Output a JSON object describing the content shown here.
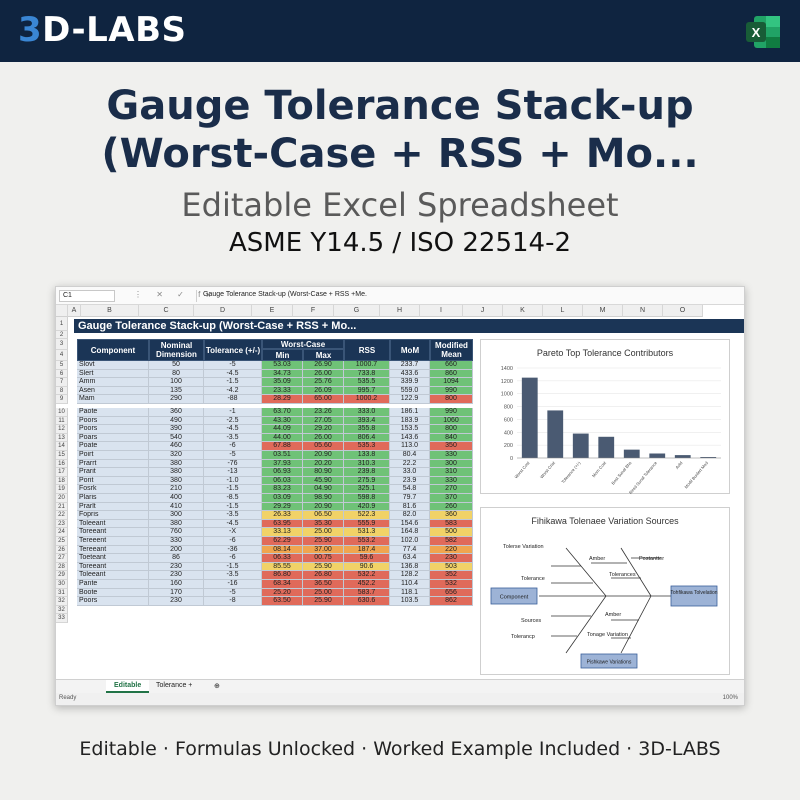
{
  "brand": {
    "prefix": "3",
    "rest": "D-LABS"
  },
  "title_line1": "Gauge Tolerance Stack-up",
  "title_line2": "(Worst-Case + RSS + Mo...",
  "subtitle": "Editable Excel Spreadsheet",
  "standard": "ASME Y14.5 / ISO 22514-2",
  "footer": "Editable · Formulas Unlocked · Worked Example Included · 3D-LABS",
  "excel": {
    "name_box": "C1",
    "formula_icons": "⋮ ✕ ✓ fx",
    "formula": "Gauge Tolerance Stack-up (Worst-Case + RSS +Me.",
    "columns": [
      "A",
      "B",
      "C",
      "D",
      "E",
      "F",
      "G",
      "H",
      "I",
      "J",
      "K",
      "L",
      "M",
      "N",
      "O"
    ],
    "sheet_title": "Gauge Tolerance Stack-up (Worst-Case + RSS + Mo...",
    "headers": {
      "component": "Component",
      "nominal": "Nominal Dimension",
      "tolerance": "Tolerance (+/-)",
      "worst_case": "Worst-Case",
      "min": "Min",
      "max": "Max",
      "rss": "RSS",
      "mom": "MoM",
      "modified": "Modified Mean"
    },
    "rows_a": [
      {
        "n": "5",
        "c": "Slovt",
        "nom": "50",
        "tol": "-5",
        "min": "53.03",
        "max": "26.90",
        "rss": "1000.7",
        "mom": "233.7",
        "mm": "660",
        "k": "g"
      },
      {
        "n": "6",
        "c": "Slert",
        "nom": "80",
        "tol": "-4.5",
        "min": "34.73",
        "max": "26.00",
        "rss": "733.8",
        "mom": "433.6",
        "mm": "860",
        "k": "g"
      },
      {
        "n": "7",
        "c": "Amm",
        "nom": "100",
        "tol": "-1.5",
        "min": "35.09",
        "max": "25.76",
        "rss": "535.5",
        "mom": "339.9",
        "mm": "1094",
        "k": "g"
      },
      {
        "n": "8",
        "c": "Asen",
        "nom": "135",
        "tol": "-4.2",
        "min": "23.33",
        "max": "26.09",
        "rss": "995.7",
        "mom": "559.0",
        "mm": "990",
        "k": "g"
      },
      {
        "n": "9",
        "c": "Mam",
        "nom": "290",
        "tol": "-88",
        "min": "28.29",
        "max": "65.00",
        "rss": "1000.2",
        "mom": "122.9",
        "mm": "800",
        "k": "r"
      }
    ],
    "rows_b": [
      {
        "n": "10",
        "c": "Paote",
        "nom": "360",
        "tol": "-1",
        "min": "63.70",
        "max": "23.26",
        "rss": "333.0",
        "mom": "186.1",
        "mm": "990",
        "k": "g"
      },
      {
        "n": "11",
        "c": "Poors",
        "nom": "490",
        "tol": "-2.5",
        "min": "43.30",
        "max": "27.05",
        "rss": "393.4",
        "mom": "183.9",
        "mm": "1060",
        "k": "g"
      },
      {
        "n": "12",
        "c": "Poors",
        "nom": "390",
        "tol": "-4.5",
        "min": "44.09",
        "max": "29.20",
        "rss": "355.8",
        "mom": "153.5",
        "mm": "800",
        "k": "g"
      },
      {
        "n": "13",
        "c": "Poars",
        "nom": "540",
        "tol": "-3.5",
        "min": "44.00",
        "max": "26.00",
        "rss": "806.4",
        "mom": "143.6",
        "mm": "840",
        "k": "g"
      },
      {
        "n": "14",
        "c": "Poate",
        "nom": "460",
        "tol": "-6",
        "min": "67.88",
        "max": "05.60",
        "rss": "535.3",
        "mom": "113.0",
        "mm": "350",
        "k": "r"
      },
      {
        "n": "15",
        "c": "Poirt",
        "nom": "320",
        "tol": "-5",
        "min": "03.51",
        "max": "20.90",
        "rss": "133.8",
        "mom": "80.4",
        "mm": "330",
        "k": "g"
      },
      {
        "n": "16",
        "c": "Prarrt",
        "nom": "380",
        "tol": "-76",
        "min": "37.93",
        "max": "20.20",
        "rss": "310.3",
        "mom": "22.2",
        "mm": "300",
        "k": "g"
      },
      {
        "n": "17",
        "c": "Prarit",
        "nom": "380",
        "tol": "-13",
        "min": "06.93",
        "max": "80.90",
        "rss": "239.8",
        "mom": "33.0",
        "mm": "310",
        "k": "g"
      },
      {
        "n": "18",
        "c": "Porit",
        "nom": "380",
        "tol": "-1.0",
        "min": "06.03",
        "max": "45.90",
        "rss": "275.9",
        "mom": "23.9",
        "mm": "330",
        "k": "g"
      },
      {
        "n": "19",
        "c": "Fosrk",
        "nom": "210",
        "tol": "-1.5",
        "min": "83.23",
        "max": "04.90",
        "rss": "325.1",
        "mom": "54.8",
        "mm": "270",
        "k": "g"
      },
      {
        "n": "20",
        "c": "Plaris",
        "nom": "400",
        "tol": "-8.5",
        "min": "03.09",
        "max": "98.90",
        "rss": "598.8",
        "mom": "79.7",
        "mm": "370",
        "k": "g"
      },
      {
        "n": "21",
        "c": "Prarlt",
        "nom": "410",
        "tol": "-1.5",
        "min": "29.29",
        "max": "20.90",
        "rss": "420.9",
        "mom": "81.6",
        "mm": "260",
        "k": "g"
      },
      {
        "n": "22",
        "c": "Fopris",
        "nom": "300",
        "tol": "-3.5",
        "min": "26.33",
        "max": "06.50",
        "rss": "522.3",
        "mom": "82.0",
        "mm": "360",
        "k": "y"
      },
      {
        "n": "23",
        "c": "Toleeant",
        "nom": "380",
        "tol": "-4.5",
        "min": "63.95",
        "max": "35.30",
        "rss": "555.9",
        "mom": "154.6",
        "mm": "583",
        "k": "r"
      },
      {
        "n": "24",
        "c": "Toreeant",
        "nom": "760",
        "tol": "-X",
        "min": "33.13",
        "max": "25.00",
        "rss": "531.3",
        "mom": "164.8",
        "mm": "500",
        "k": "y"
      },
      {
        "n": "25",
        "c": "Tereeent",
        "nom": "330",
        "tol": "-6",
        "min": "62.29",
        "max": "25.90",
        "rss": "553.2",
        "mom": "102.0",
        "mm": "582",
        "k": "r"
      },
      {
        "n": "26",
        "c": "Tereeant",
        "nom": "200",
        "tol": "-36",
        "min": "08.14",
        "max": "37.00",
        "rss": "187.4",
        "mom": "77.4",
        "mm": "220",
        "k": "o"
      },
      {
        "n": "27",
        "c": "Toeteant",
        "nom": "86",
        "tol": "-6",
        "min": "06.33",
        "max": "00.75",
        "rss": "59.6",
        "mom": "63.4",
        "mm": "230",
        "k": "r"
      },
      {
        "n": "28",
        "c": "Toreeant",
        "nom": "230",
        "tol": "-1.5",
        "min": "85.55",
        "max": "25.90",
        "rss": "90.6",
        "mom": "136.8",
        "mm": "503",
        "k": "y"
      },
      {
        "n": "29",
        "c": "Toleeant",
        "nom": "230",
        "tol": "-3.5",
        "min": "86.80",
        "max": "26.80",
        "rss": "532.2",
        "mom": "128.2",
        "mm": "352",
        "k": "r"
      },
      {
        "n": "30",
        "c": "Pante",
        "nom": "160",
        "tol": "-16",
        "min": "68.34",
        "max": "36.50",
        "rss": "452.2",
        "mom": "110.4",
        "mm": "532",
        "k": "r"
      },
      {
        "n": "31",
        "c": "Boote",
        "nom": "170",
        "tol": "-5",
        "min": "25.20",
        "max": "25.00",
        "rss": "583.7",
        "mom": "118.1",
        "mm": "656",
        "k": "r"
      },
      {
        "n": "32",
        "c": "Poors",
        "nom": "230",
        "tol": "-8",
        "min": "63.50",
        "max": "25.90",
        "rss": "630.6",
        "mom": "103.5",
        "mm": "862",
        "k": "r"
      }
    ],
    "tail_rows": [
      "32",
      "33"
    ],
    "tabs": {
      "active": "Editable",
      "second": "Tolerance +",
      "add": "⊕"
    },
    "status": {
      "ready": "Ready",
      "zoom": "100%"
    }
  },
  "pareto": {
    "title": "Pareto Top Tolerance Contributors",
    "chart_data": {
      "type": "bar",
      "categories": [
        "Worst Cost",
        "Worst Crist",
        "Tolerance (+/-)",
        "Mom Cost",
        "Bost Sunal Bhs",
        "Resd Sunal Tolerance",
        "Aold",
        "Modil Bunlert Mod"
      ],
      "values": [
        1250,
        740,
        380,
        330,
        130,
        70,
        45,
        15
      ],
      "ylim": [
        0,
        1400
      ],
      "yticks": [
        "1400",
        "1200",
        "1000",
        "800",
        "600",
        "400",
        "200",
        "0"
      ],
      "bar_color": "#4a5a72",
      "grid": true
    }
  },
  "ishikawa": {
    "title": "Fihikawa Tolenaee Variation Sources",
    "labels": {
      "tolerse_variation": "Tolerse Variation",
      "amber_top": "Amber",
      "postantter": "Postantter",
      "tolerance_left": "Tolerance",
      "tolerances": "Tolerances",
      "sources": "Sources",
      "amber_bottom": "Amber",
      "tolerancp": "Tolerancp",
      "tonage_variation": "Tonage Variation",
      "component_box": "Component",
      "head_box": "Tohfikawa Tolvelation",
      "bottom_box": "Pishkawe Variations"
    }
  }
}
